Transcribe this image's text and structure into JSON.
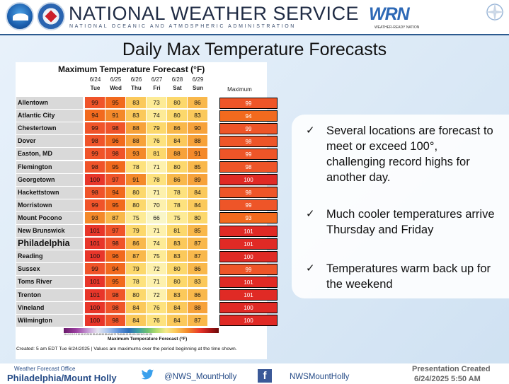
{
  "header": {
    "title": "NATIONAL WEATHER SERVICE",
    "subtitle": "NATIONAL OCEANIC AND ATMOSPHERIC ADMINISTRATION",
    "wrn_logo_text": "WRN",
    "wrn_tagline": "WEATHER-READY NATION"
  },
  "slide_title": "Daily Max Temperature Forecasts",
  "table": {
    "title": "Maximum Temperature Forecast (°F)",
    "columns": [
      {
        "date": "6/24",
        "day": "Tue"
      },
      {
        "date": "6/25",
        "day": "Wed"
      },
      {
        "date": "6/26",
        "day": "Thu"
      },
      {
        "date": "6/27",
        "day": "Fri"
      },
      {
        "date": "6/28",
        "day": "Sat"
      },
      {
        "date": "6/29",
        "day": "Sun"
      }
    ],
    "max_header": "Maximum",
    "rows": [
      {
        "name": "Allentown",
        "values": [
          99,
          95,
          83,
          73,
          80,
          86
        ],
        "max": 99
      },
      {
        "name": "Atlantic City",
        "values": [
          94,
          91,
          83,
          74,
          80,
          83
        ],
        "max": 94
      },
      {
        "name": "Chestertown",
        "values": [
          99,
          98,
          88,
          79,
          86,
          90
        ],
        "max": 99
      },
      {
        "name": "Dover",
        "values": [
          98,
          96,
          88,
          76,
          84,
          88
        ],
        "max": 98
      },
      {
        "name": "Easton, MD",
        "values": [
          99,
          98,
          93,
          81,
          88,
          91
        ],
        "max": 99
      },
      {
        "name": "Flemington",
        "values": [
          98,
          95,
          78,
          71,
          80,
          85
        ],
        "max": 98
      },
      {
        "name": "Georgetown",
        "values": [
          100,
          97,
          91,
          78,
          86,
          89
        ],
        "max": 100
      },
      {
        "name": "Hackettstown",
        "values": [
          98,
          94,
          80,
          71,
          78,
          84
        ],
        "max": 98
      },
      {
        "name": "Morristown",
        "values": [
          99,
          95,
          80,
          70,
          78,
          84
        ],
        "max": 99
      },
      {
        "name": "Mount Pocono",
        "values": [
          93,
          87,
          75,
          66,
          75,
          80
        ],
        "max": 93
      },
      {
        "name": "New Brunswick",
        "values": [
          101,
          97,
          79,
          71,
          81,
          85
        ],
        "max": 101
      },
      {
        "name": "Philadelphia",
        "values": [
          101,
          98,
          86,
          74,
          83,
          87
        ],
        "max": 101
      },
      {
        "name": "Reading",
        "values": [
          100,
          96,
          87,
          75,
          83,
          87
        ],
        "max": 100
      },
      {
        "name": "Sussex",
        "values": [
          99,
          94,
          79,
          72,
          80,
          86
        ],
        "max": 99
      },
      {
        "name": "Toms River",
        "values": [
          101,
          95,
          78,
          71,
          80,
          83
        ],
        "max": 101
      },
      {
        "name": "Trenton",
        "values": [
          101,
          98,
          80,
          72,
          83,
          86
        ],
        "max": 101
      },
      {
        "name": "Vineland",
        "values": [
          100,
          98,
          84,
          76,
          84,
          88
        ],
        "max": 100
      },
      {
        "name": "Wilmington",
        "values": [
          100,
          98,
          84,
          76,
          84,
          87
        ],
        "max": 100
      }
    ],
    "colorbar_label": "Maximum Temperature Forecast (°F)",
    "colorbar_ticks": "-5-4-3-2-1 0 5 10 15 20 25 30 35 40 45 50 55 60 65 70 75 80 85 90 95 100 105 110 115 120",
    "created_note": "Created: 5 am EDT Tue 6/24/2025  |  Values are maximums over the period beginning at the time shown."
  },
  "bullets": [
    {
      "check": "✓",
      "text": "Several locations are forecast to meet or exceed 100°, challenging record highs for another day."
    },
    {
      "check": "✓",
      "text": "Much cooler temperatures arrive Thursday and Friday"
    },
    {
      "check": "✓",
      "text": "Temperatures warm back up for the weekend"
    }
  ],
  "footer": {
    "office_line1": "Weather Forecast Office",
    "office_line2": "Philadelphia/Mount Holly",
    "twitter_handle": "@NWS_MountHolly",
    "facebook_handle": "NWSMountHolly",
    "facebook_icon_glyph": "f",
    "presentation_line1": "Presentation Created",
    "presentation_line2": "6/24/2025 5:50 AM"
  },
  "colors": {
    "header_rule": "#2c5a8f",
    "link_blue": "#244a86",
    "max_red": "#e8362a",
    "max_orange": "#f26a1e"
  },
  "icons": [
    "noaa-logo",
    "nws-logo",
    "wrn-logo",
    "compass-icon",
    "twitter-icon",
    "facebook-icon",
    "check-icon"
  ]
}
